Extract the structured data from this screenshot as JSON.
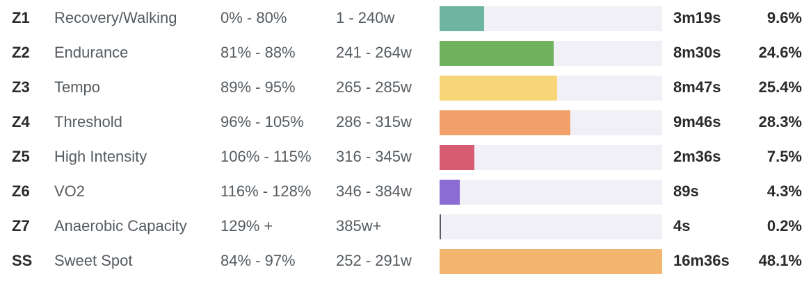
{
  "zones": [
    {
      "zone": "Z1",
      "name": "Recovery/Walking",
      "pct_range": "0% - 80%",
      "watt_range": "1 - 240w",
      "time": "3m19s",
      "percent": "9.6%",
      "fraction": 0.096,
      "color": "#6db5a0"
    },
    {
      "zone": "Z2",
      "name": "Endurance",
      "pct_range": "81% - 88%",
      "watt_range": "241 - 264w",
      "time": "8m30s",
      "percent": "24.6%",
      "fraction": 0.246,
      "color": "#70b15d"
    },
    {
      "zone": "Z3",
      "name": "Tempo",
      "pct_range": "89% - 95%",
      "watt_range": "265 - 285w",
      "time": "8m47s",
      "percent": "25.4%",
      "fraction": 0.254,
      "color": "#f6d676"
    },
    {
      "zone": "Z4",
      "name": "Threshold",
      "pct_range": "96% - 105%",
      "watt_range": "286 - 315w",
      "time": "9m46s",
      "percent": "28.3%",
      "fraction": 0.283,
      "color": "#f0a068"
    },
    {
      "zone": "Z5",
      "name": "High Intensity",
      "pct_range": "106% - 115%",
      "watt_range": "316 - 345w",
      "time": "2m36s",
      "percent": "7.5%",
      "fraction": 0.075,
      "color": "#d65c72"
    },
    {
      "zone": "Z6",
      "name": "VO2",
      "pct_range": "116% - 128%",
      "watt_range": "346 - 384w",
      "time": "89s",
      "percent": "4.3%",
      "fraction": 0.043,
      "color": "#8b6bd4"
    },
    {
      "zone": "Z7",
      "name": "Anaerobic Capacity",
      "pct_range": "129% +",
      "watt_range": "385w+",
      "time": "4s",
      "percent": "0.2%",
      "fraction": 0.002,
      "color": "#5a5a66"
    },
    {
      "zone": "SS",
      "name": "Sweet Spot",
      "pct_range": "84% - 97%",
      "watt_range": "252 - 291w",
      "time": "16m36s",
      "percent": "48.1%",
      "fraction": 0.481,
      "color": "#f2b66e"
    }
  ]
}
